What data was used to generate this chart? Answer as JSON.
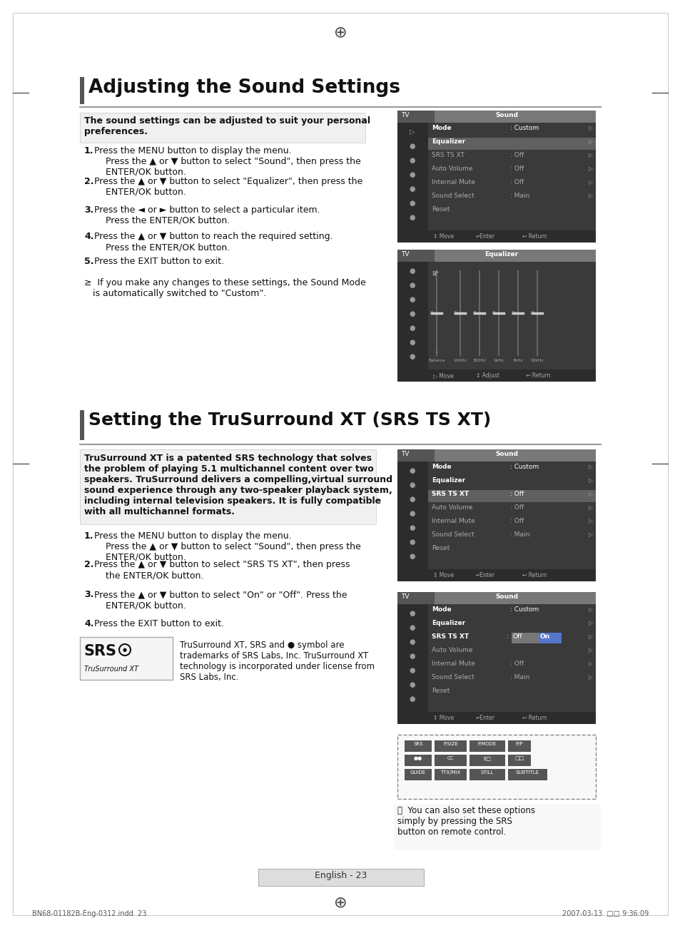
{
  "bg_color": "#ffffff",
  "section1_title": "Adjusting the Sound Settings",
  "section2_title": "Setting the TruSurround XT (SRS TS XT)",
  "footer_left": "BN68-01182B-Eng-0312.indd  23",
  "footer_right": "2007-03-13  □□ 9:36:09",
  "page_label": "English - 23",
  "section1_intro": "The sound settings can be adjusted to suit your personal\npreferences.",
  "section1_steps": [
    "Press the MENU button to display the menu.\n    Press the ▲ or ▼ button to select \"Sound\", then press the\n    ENTER/OK button.",
    "Press the ▲ or ▼ button to select \"Equalizer\", then press the\n    ENTER/OK button.",
    "Press the ◄ or ► button to select a particular item.\n    Press the ENTER/OK button.",
    "Press the ▲ or ▼ button to reach the required setting.\n    Press the ENTER/OK button.",
    "Press the EXIT button to exit."
  ],
  "section1_bold_words": [
    "MENU",
    "ENTER/OK",
    "ENTER/OK",
    "ENTER/OK",
    "ENTER/OK",
    "EXIT"
  ],
  "section1_note": "≥  If you make any changes to these settings, the Sound Mode\n   is automatically switched to \"Custom\".",
  "section2_intro": "TruSurround XT is a patented SRS technology that solves\nthe problem of playing 5.1 multichannel content over two\nspeakers. TruSurround delivers a compelling,virtual surround\nsound experience through any two-speaker playback system,\nincluding internal television speakers. It is fully compatible\nwith all multichannel formats.",
  "section2_steps": [
    "Press the MENU button to display the menu.\n    Press the ▲ or ▼ button to select \"Sound\", then press the\n    ENTER/OK button.",
    "Press the ▲ or ▼ button to select \"SRS TS XT\", then press\n    the ENTER/OK button.",
    "Press the ▲ or ▼ button to select \"On\" or \"Off\". Press the\n    ENTER/OK button.",
    "Press the EXIT button to exit."
  ],
  "section2_note": "You can also set these options\nsimply by pressing the SRS\nbutton on remote control.",
  "srs_note": "TruSurround XT, SRS and ● symbol are\ntrademarks of SRS Labs, Inc. TruSurround XT\ntechnology is incorporated under license from\nSRS Labs, Inc."
}
